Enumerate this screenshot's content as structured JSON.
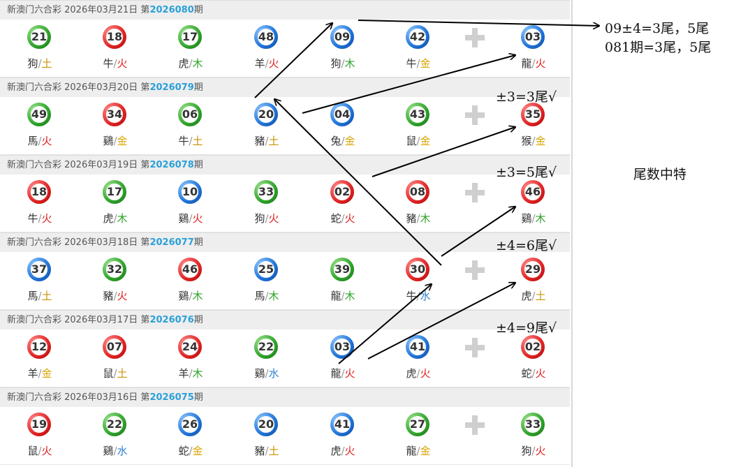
{
  "draws": [
    {
      "title": "新澳门六合彩 2026年03月21日 第",
      "issue": "2026080",
      "suffix": "期",
      "balls": [
        {
          "n": "21",
          "c": "green",
          "z": "狗",
          "e": "土",
          "ec": "e-earth"
        },
        {
          "n": "18",
          "c": "red",
          "z": "牛",
          "e": "火",
          "ec": "e-fire"
        },
        {
          "n": "17",
          "c": "green",
          "z": "虎",
          "e": "木",
          "ec": "e-wood"
        },
        {
          "n": "48",
          "c": "blue",
          "z": "羊",
          "e": "火",
          "ec": "e-fire"
        },
        {
          "n": "09",
          "c": "blue",
          "z": "狗",
          "e": "木",
          "ec": "e-wood"
        },
        {
          "n": "42",
          "c": "blue",
          "z": "牛",
          "e": "金",
          "ec": "e-gold"
        },
        {
          "n": "03",
          "c": "blue",
          "z": "龍",
          "e": "火",
          "ec": "e-fire"
        }
      ]
    },
    {
      "title": "新澳门六合彩 2026年03月20日 第",
      "issue": "2026079",
      "suffix": "期",
      "balls": [
        {
          "n": "49",
          "c": "green",
          "z": "馬",
          "e": "火",
          "ec": "e-fire"
        },
        {
          "n": "34",
          "c": "red",
          "z": "鷄",
          "e": "金",
          "ec": "e-gold"
        },
        {
          "n": "06",
          "c": "green",
          "z": "牛",
          "e": "土",
          "ec": "e-earth"
        },
        {
          "n": "20",
          "c": "blue",
          "z": "豬",
          "e": "土",
          "ec": "e-earth"
        },
        {
          "n": "04",
          "c": "blue",
          "z": "兔",
          "e": "金",
          "ec": "e-gold"
        },
        {
          "n": "43",
          "c": "green",
          "z": "鼠",
          "e": "金",
          "ec": "e-gold"
        },
        {
          "n": "35",
          "c": "red",
          "z": "猴",
          "e": "金",
          "ec": "e-gold"
        }
      ]
    },
    {
      "title": "新澳门六合彩 2026年03月19日 第",
      "issue": "2026078",
      "suffix": "期",
      "balls": [
        {
          "n": "18",
          "c": "red",
          "z": "牛",
          "e": "火",
          "ec": "e-fire"
        },
        {
          "n": "17",
          "c": "green",
          "z": "虎",
          "e": "木",
          "ec": "e-wood"
        },
        {
          "n": "10",
          "c": "blue",
          "z": "鷄",
          "e": "火",
          "ec": "e-fire"
        },
        {
          "n": "33",
          "c": "green",
          "z": "狗",
          "e": "火",
          "ec": "e-fire"
        },
        {
          "n": "02",
          "c": "red",
          "z": "蛇",
          "e": "火",
          "ec": "e-fire"
        },
        {
          "n": "08",
          "c": "red",
          "z": "豬",
          "e": "木",
          "ec": "e-wood"
        },
        {
          "n": "46",
          "c": "red",
          "z": "鷄",
          "e": "木",
          "ec": "e-wood"
        }
      ]
    },
    {
      "title": "新澳门六合彩 2026年03月18日 第",
      "issue": "2026077",
      "suffix": "期",
      "balls": [
        {
          "n": "37",
          "c": "blue",
          "z": "馬",
          "e": "土",
          "ec": "e-earth"
        },
        {
          "n": "32",
          "c": "green",
          "z": "豬",
          "e": "火",
          "ec": "e-fire"
        },
        {
          "n": "46",
          "c": "red",
          "z": "鷄",
          "e": "木",
          "ec": "e-wood"
        },
        {
          "n": "25",
          "c": "blue",
          "z": "馬",
          "e": "木",
          "ec": "e-wood"
        },
        {
          "n": "39",
          "c": "green",
          "z": "龍",
          "e": "木",
          "ec": "e-wood"
        },
        {
          "n": "30",
          "c": "red",
          "z": "牛",
          "e": "水",
          "ec": "e-water"
        },
        {
          "n": "29",
          "c": "red",
          "z": "虎",
          "e": "土",
          "ec": "e-earth"
        }
      ]
    },
    {
      "title": "新澳门六合彩 2026年03月17日 第",
      "issue": "2026076",
      "suffix": "期",
      "balls": [
        {
          "n": "12",
          "c": "red",
          "z": "羊",
          "e": "金",
          "ec": "e-gold"
        },
        {
          "n": "07",
          "c": "red",
          "z": "鼠",
          "e": "土",
          "ec": "e-earth"
        },
        {
          "n": "24",
          "c": "red",
          "z": "羊",
          "e": "木",
          "ec": "e-wood"
        },
        {
          "n": "22",
          "c": "green",
          "z": "鷄",
          "e": "水",
          "ec": "e-water"
        },
        {
          "n": "03",
          "c": "blue",
          "z": "龍",
          "e": "火",
          "ec": "e-fire"
        },
        {
          "n": "41",
          "c": "blue",
          "z": "虎",
          "e": "火",
          "ec": "e-fire"
        },
        {
          "n": "02",
          "c": "red",
          "z": "蛇",
          "e": "火",
          "ec": "e-fire"
        }
      ]
    },
    {
      "title": "新澳门六合彩 2026年03月16日 第",
      "issue": "2026075",
      "suffix": "期",
      "balls": [
        {
          "n": "19",
          "c": "red",
          "z": "鼠",
          "e": "火",
          "ec": "e-fire"
        },
        {
          "n": "22",
          "c": "green",
          "z": "鷄",
          "e": "水",
          "ec": "e-water"
        },
        {
          "n": "26",
          "c": "blue",
          "z": "蛇",
          "e": "金",
          "ec": "e-gold"
        },
        {
          "n": "20",
          "c": "blue",
          "z": "豬",
          "e": "土",
          "ec": "e-earth"
        },
        {
          "n": "41",
          "c": "blue",
          "z": "虎",
          "e": "火",
          "ec": "e-fire"
        },
        {
          "n": "27",
          "c": "green",
          "z": "龍",
          "e": "金",
          "ec": "e-gold"
        },
        {
          "n": "33",
          "c": "green",
          "z": "狗",
          "e": "火",
          "ec": "e-fire"
        }
      ]
    }
  ],
  "annotations": {
    "note1": "09±4=3尾，5尾",
    "note2": "081期=3尾，5尾",
    "check1": "±3=3尾√",
    "check2": "±3=5尾√",
    "check3": "±4=6尾√",
    "check4": "±4=9尾√",
    "side_title": "尾数中特"
  },
  "colors": {
    "red": "#e02424",
    "blue": "#1f73d8",
    "green": "#2fa32a",
    "issue": "#2aa0d8"
  }
}
